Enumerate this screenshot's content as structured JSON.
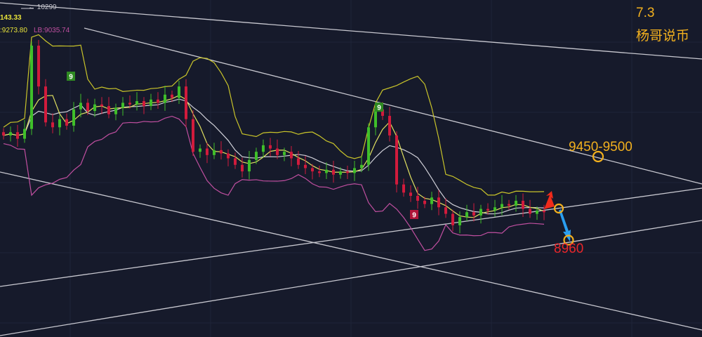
{
  "colors": {
    "background": "#161a2b",
    "up": "#3fbf2a",
    "down": "#d11b3c",
    "upper_band": "#c9c42a",
    "lower_band": "#c04fa0",
    "mid_line": "#d0d0d8",
    "annotation": "#f2b01e",
    "target_low": "#e8262a",
    "arrow_up": "#f02a1a",
    "arrow_down": "#2a9ef0"
  },
  "header": {
    "high_marker": "10299",
    "ub_value": "143.33",
    "mb_value": ":9273.80",
    "lb_value": "LB:9035.74"
  },
  "annotations": {
    "date": "7.3",
    "author": "杨哥说币",
    "resistance": "9450-9500",
    "support": "8960"
  },
  "td_markers": [
    {
      "label": "9",
      "color": "green"
    },
    {
      "label": "9",
      "color": "green"
    },
    {
      "label": "9",
      "color": "red"
    }
  ],
  "chart_data": {
    "type": "candlestick",
    "title": "",
    "xlabel": "",
    "ylabel": "",
    "grid": true,
    "indicators": [
      "Bollinger Bands",
      "Moving averages"
    ],
    "high_marker": 10299,
    "targets": {
      "resistance": [
        9450,
        9500
      ],
      "support": 8960
    },
    "closes": [
      9600,
      9620,
      9580,
      9640,
      10150,
      9900,
      9680,
      9650,
      9700,
      9660,
      9760,
      9800,
      9750,
      9790,
      9780,
      9730,
      9770,
      9800,
      9790,
      9810,
      9780,
      9820,
      9800,
      9850,
      9830,
      9900,
      9700,
      9500,
      9520,
      9480,
      9510,
      9490,
      9460,
      9420,
      9380,
      9450,
      9500,
      9540,
      9520,
      9480,
      9500,
      9460,
      9420,
      9400,
      9380,
      9370,
      9390,
      9360,
      9380,
      9370,
      9400,
      9420,
      9650,
      9760,
      9720,
      9600,
      9300,
      9250,
      9230,
      9200,
      9180,
      9220,
      9160,
      9120,
      9050,
      9100,
      9130,
      9110,
      9150,
      9140,
      9160,
      9180,
      9170,
      9200,
      9150,
      9120,
      9140,
      9130
    ]
  }
}
